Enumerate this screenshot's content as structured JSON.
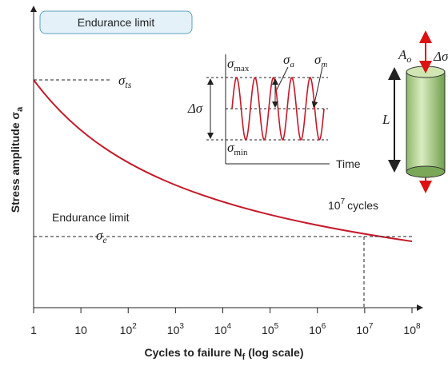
{
  "badge": "Endurance limit",
  "y_axis_label": {
    "text": "Stress amplitude σ",
    "sub": "a"
  },
  "x_axis_label": {
    "text": "Cycles to failure N",
    "sub": "f",
    "suffix": " (log scale)"
  },
  "x_ticks": [
    {
      "base": "1"
    },
    {
      "base": "10"
    },
    {
      "base": "10",
      "exp": "2"
    },
    {
      "base": "10",
      "exp": "3"
    },
    {
      "base": "10",
      "exp": "4"
    },
    {
      "base": "10",
      "exp": "5"
    },
    {
      "base": "10",
      "exp": "6"
    },
    {
      "base": "10",
      "exp": "7"
    },
    {
      "base": "10",
      "exp": "8"
    }
  ],
  "curve_labels": {
    "sigma_ts": {
      "sym": "σ",
      "sub": "ts"
    },
    "endurance_limit": "Endurance limit",
    "sigma_e": {
      "sym": "σ",
      "sub": "e"
    },
    "cycles": {
      "base": "10",
      "exp": "7",
      "text": "cycles"
    }
  },
  "inset": {
    "sigma_max": {
      "sym": "σ",
      "sub": "max"
    },
    "sigma_min": {
      "sym": "σ",
      "sub": "min"
    },
    "sigma_a": {
      "sym": "σ",
      "sub": "a"
    },
    "sigma_m": {
      "sym": "σ",
      "sub": "m"
    },
    "delta_sigma": "Δσ",
    "time": "Time"
  },
  "specimen": {
    "area": {
      "sym": "A",
      "sub": "o"
    },
    "length": "L",
    "delta_sigma": "Δσ"
  }
}
